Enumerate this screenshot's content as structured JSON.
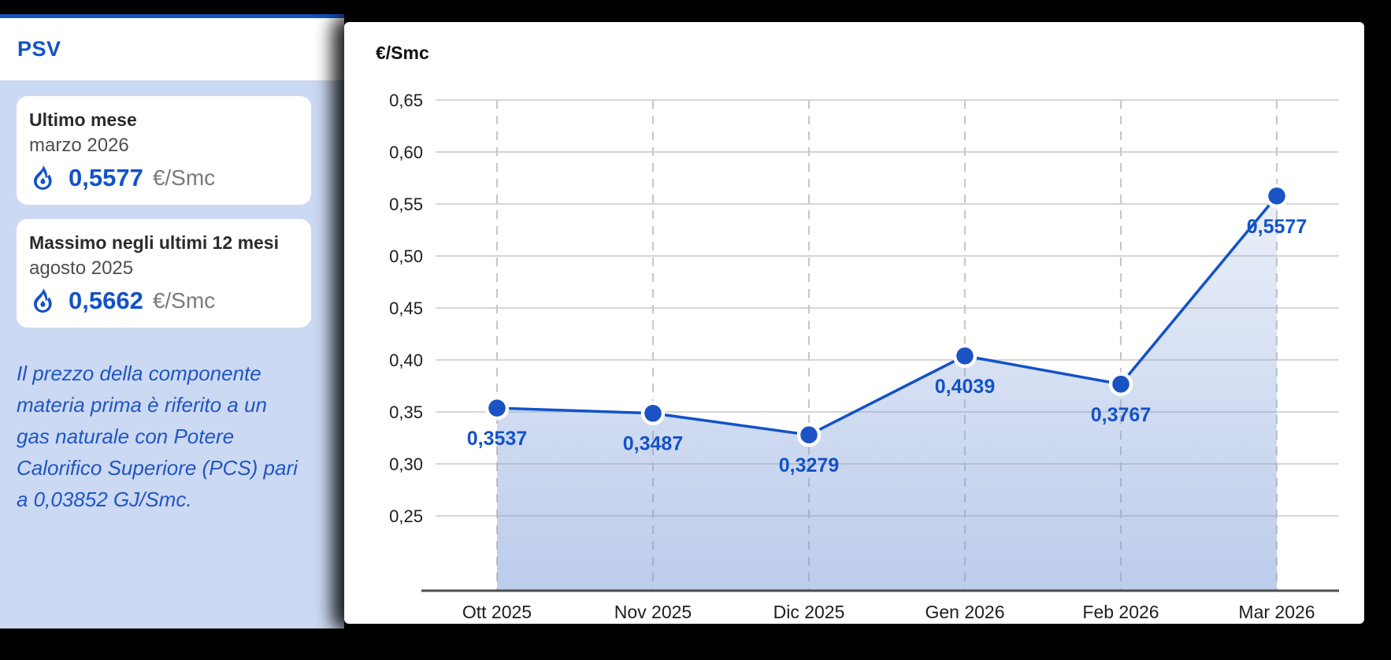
{
  "accent_color": "#1352c8",
  "sidebar": {
    "title": "PSV",
    "cards": [
      {
        "title": "Ultimo mese",
        "subtitle": "marzo 2026",
        "value": "0,5577",
        "unit": "€/Smc"
      },
      {
        "title": "Massimo negli ultimi 12 mesi",
        "subtitle": "agosto 2025",
        "value": "0,5662",
        "unit": "€/Smc"
      }
    ],
    "note": "Il prezzo della componente materia prima è riferito a un gas naturale con Potere Calorifico Superiore (PCS) pari a 0,03852 GJ/Smc."
  },
  "chart_data": {
    "type": "area",
    "title": "€/Smc",
    "categories": [
      "Ott 2025",
      "Nov 2025",
      "Dic 2025",
      "Gen 2026",
      "Feb 2026",
      "Mar 2026"
    ],
    "values": [
      0.3537,
      0.3487,
      0.3279,
      0.4039,
      0.3767,
      0.5577
    ],
    "value_labels": [
      "0,3537",
      "0,3487",
      "0,3279",
      "0,4039",
      "0,3767",
      "0,5577"
    ],
    "y_ticks": [
      "0,65",
      "0,60",
      "0,55",
      "0,50",
      "0,45",
      "0,40",
      "0,35",
      "0,30",
      "0,25"
    ],
    "y_tick_values": [
      0.65,
      0.6,
      0.55,
      0.5,
      0.45,
      0.4,
      0.35,
      0.3,
      0.25
    ],
    "ylim": [
      0.25,
      0.65
    ],
    "grid": {
      "horizontal": "solid",
      "vertical": "dashed"
    },
    "legend": "none",
    "colors": {
      "line": "#1352c8",
      "point_fill": "#1a53c4",
      "point_ring": "#ffffff",
      "area": "#7e9dd8",
      "h_grid": "#d6d6d6",
      "v_grid_dash": "#c8c8c8",
      "axis": "#4d4d4d",
      "tick_text": "#1d1d1f",
      "value_label": "#1352c8"
    }
  }
}
